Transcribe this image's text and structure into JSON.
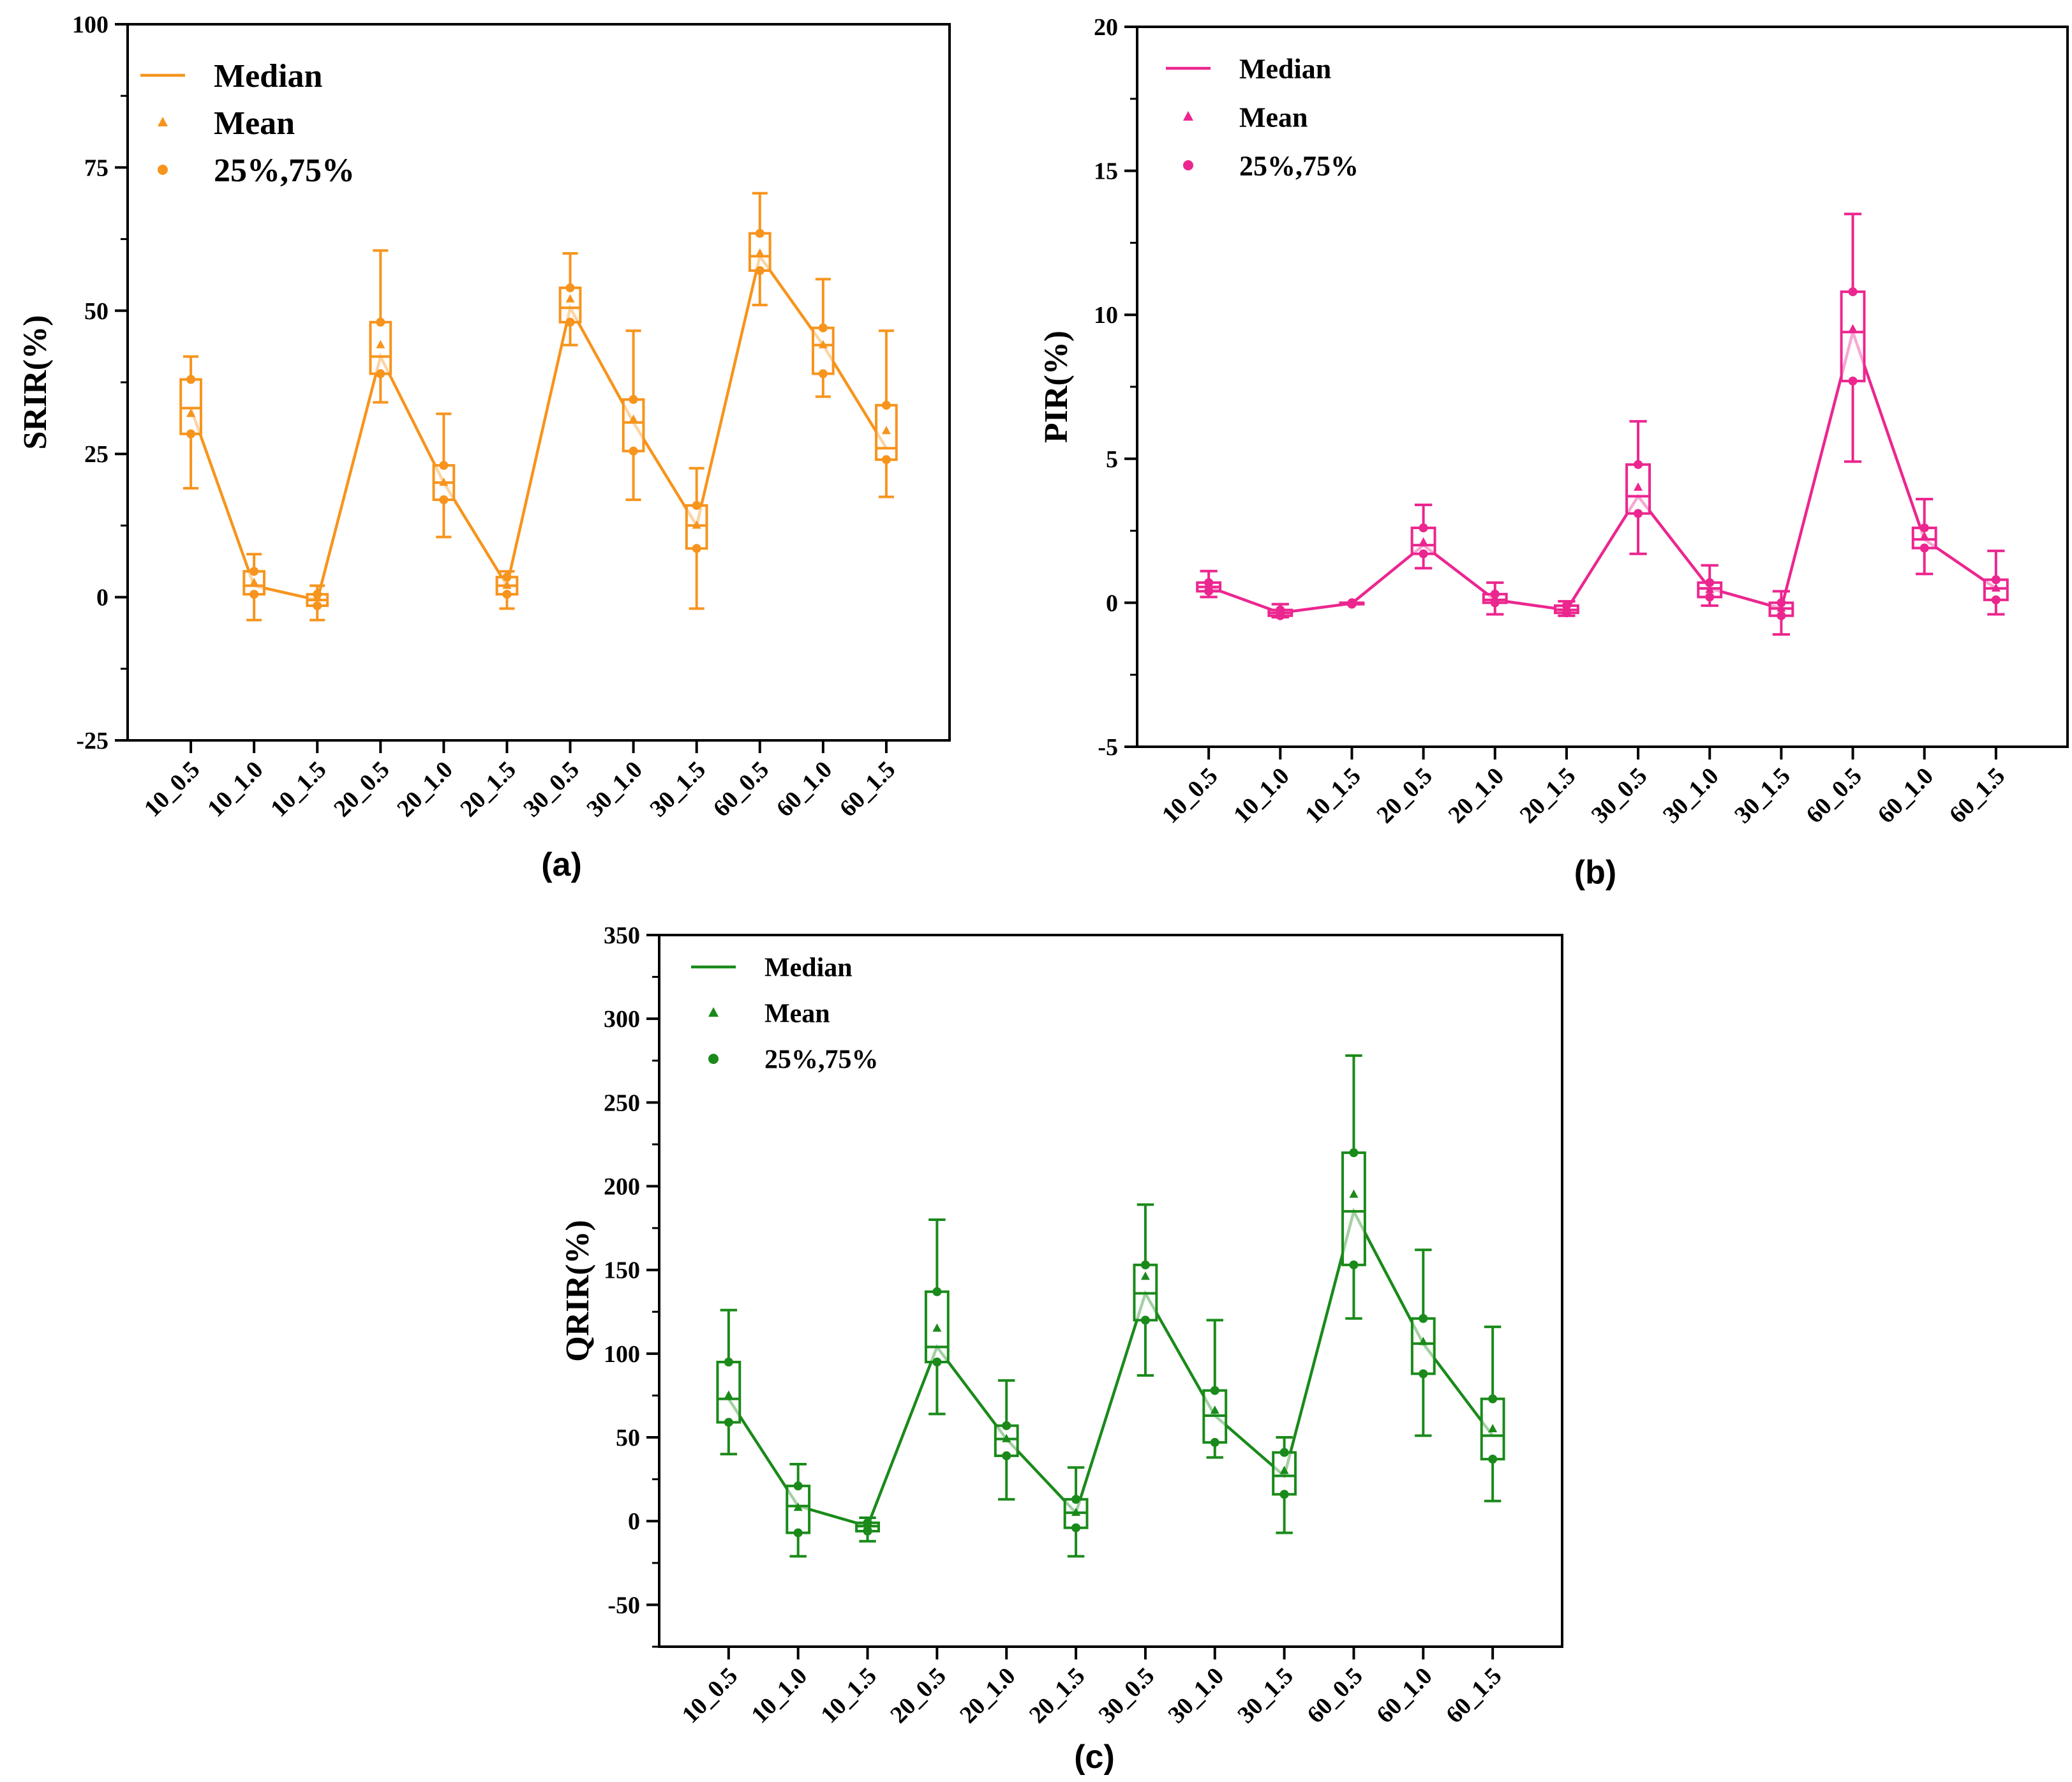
{
  "chart_data": [
    {
      "type": "box",
      "panel_label": "(a)",
      "ylabel": "SRIR(%)",
      "ylim": [
        -25,
        100
      ],
      "yticks": [
        -25,
        0,
        25,
        50,
        75,
        100
      ],
      "color": "#f7941d",
      "categories": [
        "10_0.5",
        "10_1.0",
        "10_1.5",
        "20_0.5",
        "20_1.0",
        "20_1.5",
        "30_0.5",
        "30_1.0",
        "30_1.5",
        "60_0.5",
        "60_1.0",
        "60_1.5"
      ],
      "legend": {
        "median": "Median",
        "mean": "Mean",
        "quartiles": "25%,75%"
      },
      "boxes": [
        {
          "whisker_low": 19,
          "q1": 28.5,
          "median": 33,
          "mean": 32,
          "q3": 38,
          "whisker_high": 42
        },
        {
          "whisker_low": -4,
          "q1": 0.5,
          "median": 2,
          "mean": 2.5,
          "q3": 4.5,
          "whisker_high": 7.5
        },
        {
          "whisker_low": -4,
          "q1": -1.5,
          "median": -0.5,
          "mean": 0,
          "q3": 0.5,
          "whisker_high": 2
        },
        {
          "whisker_low": 34,
          "q1": 39,
          "median": 42,
          "mean": 44,
          "q3": 48,
          "whisker_high": 60.5
        },
        {
          "whisker_low": 10.5,
          "q1": 17,
          "median": 20,
          "mean": 20,
          "q3": 23,
          "whisker_high": 32
        },
        {
          "whisker_low": -2,
          "q1": 0.5,
          "median": 2,
          "mean": 2,
          "q3": 3.5,
          "whisker_high": 4.5
        },
        {
          "whisker_low": 44,
          "q1": 48,
          "median": 50.5,
          "mean": 52,
          "q3": 54,
          "whisker_high": 60
        },
        {
          "whisker_low": 17,
          "q1": 25.5,
          "median": 30.5,
          "mean": 31,
          "q3": 34.5,
          "whisker_high": 46.5
        },
        {
          "whisker_low": -2,
          "q1": 8.5,
          "median": 12.5,
          "mean": 12.5,
          "q3": 16,
          "whisker_high": 22.5
        },
        {
          "whisker_low": 51,
          "q1": 57,
          "median": 59.5,
          "mean": 60,
          "q3": 63.5,
          "whisker_high": 70.5
        },
        {
          "whisker_low": 35,
          "q1": 39,
          "median": 44,
          "mean": 44,
          "q3": 47,
          "whisker_high": 55.5
        },
        {
          "whisker_low": 17.5,
          "q1": 24,
          "median": 26,
          "mean": 29,
          "q3": 33.5,
          "whisker_high": 46.5
        }
      ]
    },
    {
      "type": "box",
      "panel_label": "(b)",
      "ylabel": "PIR(%)",
      "ylim": [
        -5,
        20
      ],
      "yticks": [
        -5,
        0,
        5,
        10,
        15,
        20
      ],
      "color": "#ec268f",
      "categories": [
        "10_0.5",
        "10_1.0",
        "10_1.5",
        "20_0.5",
        "20_1.0",
        "20_1.5",
        "30_0.5",
        "30_1.0",
        "30_1.5",
        "60_0.5",
        "60_1.0",
        "60_1.5"
      ],
      "legend": {
        "median": "Median",
        "mean": "Mean",
        "quartiles": "25%,75%"
      },
      "boxes": [
        {
          "whisker_low": 0.2,
          "q1": 0.4,
          "median": 0.55,
          "mean": 0.55,
          "q3": 0.7,
          "whisker_high": 1.1
        },
        {
          "whisker_low": -0.5,
          "q1": -0.45,
          "median": -0.35,
          "mean": -0.35,
          "q3": -0.25,
          "whisker_high": -0.05
        },
        {
          "whisker_low": -0.05,
          "q1": -0.05,
          "median": -0.02,
          "mean": -0.02,
          "q3": 0.0,
          "whisker_high": 0.0
        },
        {
          "whisker_low": 1.2,
          "q1": 1.7,
          "median": 2.0,
          "mean": 2.1,
          "q3": 2.6,
          "whisker_high": 3.4
        },
        {
          "whisker_low": -0.4,
          "q1": 0.0,
          "median": 0.1,
          "mean": 0.15,
          "q3": 0.3,
          "whisker_high": 0.7
        },
        {
          "whisker_low": -0.45,
          "q1": -0.35,
          "median": -0.25,
          "mean": -0.25,
          "q3": -0.1,
          "whisker_high": 0.05
        },
        {
          "whisker_low": 1.7,
          "q1": 3.1,
          "median": 3.7,
          "mean": 4.0,
          "q3": 4.8,
          "whisker_high": 6.3
        },
        {
          "whisker_low": -0.1,
          "q1": 0.2,
          "median": 0.5,
          "mean": 0.45,
          "q3": 0.7,
          "whisker_high": 1.3
        },
        {
          "whisker_low": -1.1,
          "q1": -0.45,
          "median": -0.2,
          "mean": -0.2,
          "q3": 0.0,
          "whisker_high": 0.4
        },
        {
          "whisker_low": 4.9,
          "q1": 7.7,
          "median": 9.4,
          "mean": 9.5,
          "q3": 10.8,
          "whisker_high": 13.5
        },
        {
          "whisker_low": 1.0,
          "q1": 1.9,
          "median": 2.2,
          "mean": 2.3,
          "q3": 2.6,
          "whisker_high": 3.6
        },
        {
          "whisker_low": -0.4,
          "q1": 0.1,
          "median": 0.5,
          "mean": 0.5,
          "q3": 0.8,
          "whisker_high": 1.8
        }
      ]
    },
    {
      "type": "box",
      "panel_label": "(c)",
      "ylabel": "QRIR(%)",
      "ylim": [
        -75,
        350
      ],
      "yticks": [
        -50,
        0,
        50,
        100,
        150,
        200,
        250,
        300,
        350
      ],
      "color": "#1a8a1a",
      "categories": [
        "10_0.5",
        "10_1.0",
        "10_1.5",
        "20_0.5",
        "20_1.0",
        "20_1.5",
        "30_0.5",
        "30_1.0",
        "30_1.5",
        "60_0.5",
        "60_1.0",
        "60_1.5"
      ],
      "legend": {
        "median": "Median",
        "mean": "Mean",
        "quartiles": "25%,75%"
      },
      "boxes": [
        {
          "whisker_low": 40,
          "q1": 59,
          "median": 73,
          "mean": 75,
          "q3": 95,
          "whisker_high": 126
        },
        {
          "whisker_low": -21,
          "q1": -7,
          "median": 9,
          "mean": 8,
          "q3": 21,
          "whisker_high": 34
        },
        {
          "whisker_low": -12,
          "q1": -6,
          "median": -3,
          "mean": -3,
          "q3": -1,
          "whisker_high": 2
        },
        {
          "whisker_low": 64,
          "q1": 95,
          "median": 104,
          "mean": 115,
          "q3": 137,
          "whisker_high": 180
        },
        {
          "whisker_low": 13,
          "q1": 39,
          "median": 49,
          "mean": 49,
          "q3": 57,
          "whisker_high": 84
        },
        {
          "whisker_low": -21,
          "q1": -4,
          "median": 5,
          "mean": 5,
          "q3": 13,
          "whisker_high": 32
        },
        {
          "whisker_low": 87,
          "q1": 120,
          "median": 136,
          "mean": 146,
          "q3": 153,
          "whisker_high": 189
        },
        {
          "whisker_low": 38,
          "q1": 47,
          "median": 63,
          "mean": 66,
          "q3": 78,
          "whisker_high": 120
        },
        {
          "whisker_low": -7,
          "q1": 16,
          "median": 27,
          "mean": 30,
          "q3": 41,
          "whisker_high": 50
        },
        {
          "whisker_low": 121,
          "q1": 153,
          "median": 185,
          "mean": 195,
          "q3": 220,
          "whisker_high": 278
        },
        {
          "whisker_low": 51,
          "q1": 88,
          "median": 106,
          "mean": 107,
          "q3": 121,
          "whisker_high": 162
        },
        {
          "whisker_low": 12,
          "q1": 37,
          "median": 51,
          "mean": 55,
          "q3": 73,
          "whisker_high": 116
        }
      ]
    }
  ]
}
